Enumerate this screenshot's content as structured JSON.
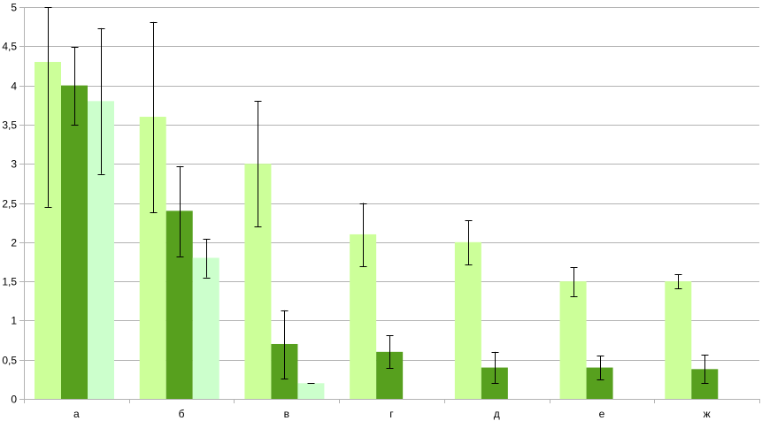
{
  "chart_data": {
    "type": "bar",
    "categories": [
      "а",
      "б",
      "в",
      "г",
      "д",
      "е",
      "ж"
    ],
    "ylim": [
      0,
      5
    ],
    "yticks": [
      "0",
      "0,5",
      "1",
      "1,5",
      "2",
      "2,5",
      "3",
      "3,5",
      "4",
      "4,5",
      "5"
    ],
    "grid": true,
    "legend": "none",
    "series": [
      {
        "color": "#ccff99",
        "values": [
          4.3,
          3.6,
          3.0,
          2.1,
          2.0,
          1.5,
          1.5
        ],
        "error_low": [
          2.45,
          2.38,
          2.2,
          1.69,
          1.71,
          1.31,
          1.41
        ],
        "error_high": [
          5.0,
          4.81,
          3.8,
          2.5,
          2.28,
          1.68,
          1.59
        ]
      },
      {
        "color": "#57a01e",
        "values": [
          4.0,
          2.4,
          0.7,
          0.6,
          0.4,
          0.4,
          0.38
        ],
        "error_low": [
          3.5,
          1.82,
          0.26,
          0.39,
          0.2,
          0.25,
          0.2
        ],
        "error_high": [
          4.49,
          2.97,
          1.13,
          0.81,
          0.6,
          0.55,
          0.56
        ]
      },
      {
        "color": "#ccffcc",
        "values": [
          3.8,
          1.8,
          0.2,
          0.0,
          0.0,
          0.0,
          0.0
        ],
        "error_low": [
          2.87,
          1.55,
          0.2,
          0.0,
          0.0,
          0.0,
          0.0
        ],
        "error_high": [
          4.73,
          2.04,
          0.2,
          0.0,
          0.0,
          0.0,
          0.0
        ]
      }
    ]
  }
}
